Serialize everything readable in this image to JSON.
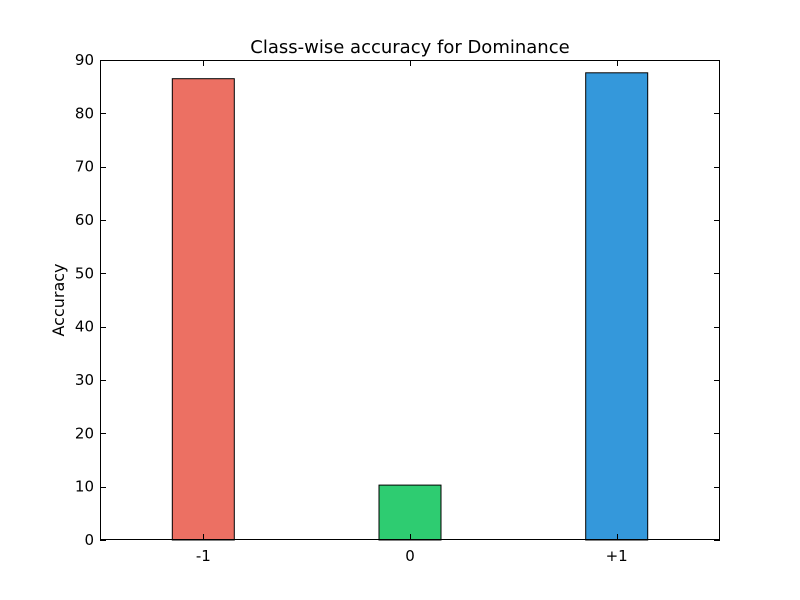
{
  "chart_data": {
    "type": "bar",
    "title": "Class-wise accuracy for Dominance",
    "xlabel": "",
    "ylabel": "Accuracy",
    "categories": [
      "-1",
      "0",
      "+1"
    ],
    "values": [
      86.5,
      10.3,
      87.6
    ],
    "colors": [
      "#ec7063",
      "#2ecc71",
      "#3498db"
    ],
    "ylim": [
      0,
      90
    ],
    "yticks": [
      0,
      10,
      20,
      30,
      40,
      50,
      60,
      70,
      80,
      90
    ],
    "grid": false,
    "legend": "none"
  }
}
